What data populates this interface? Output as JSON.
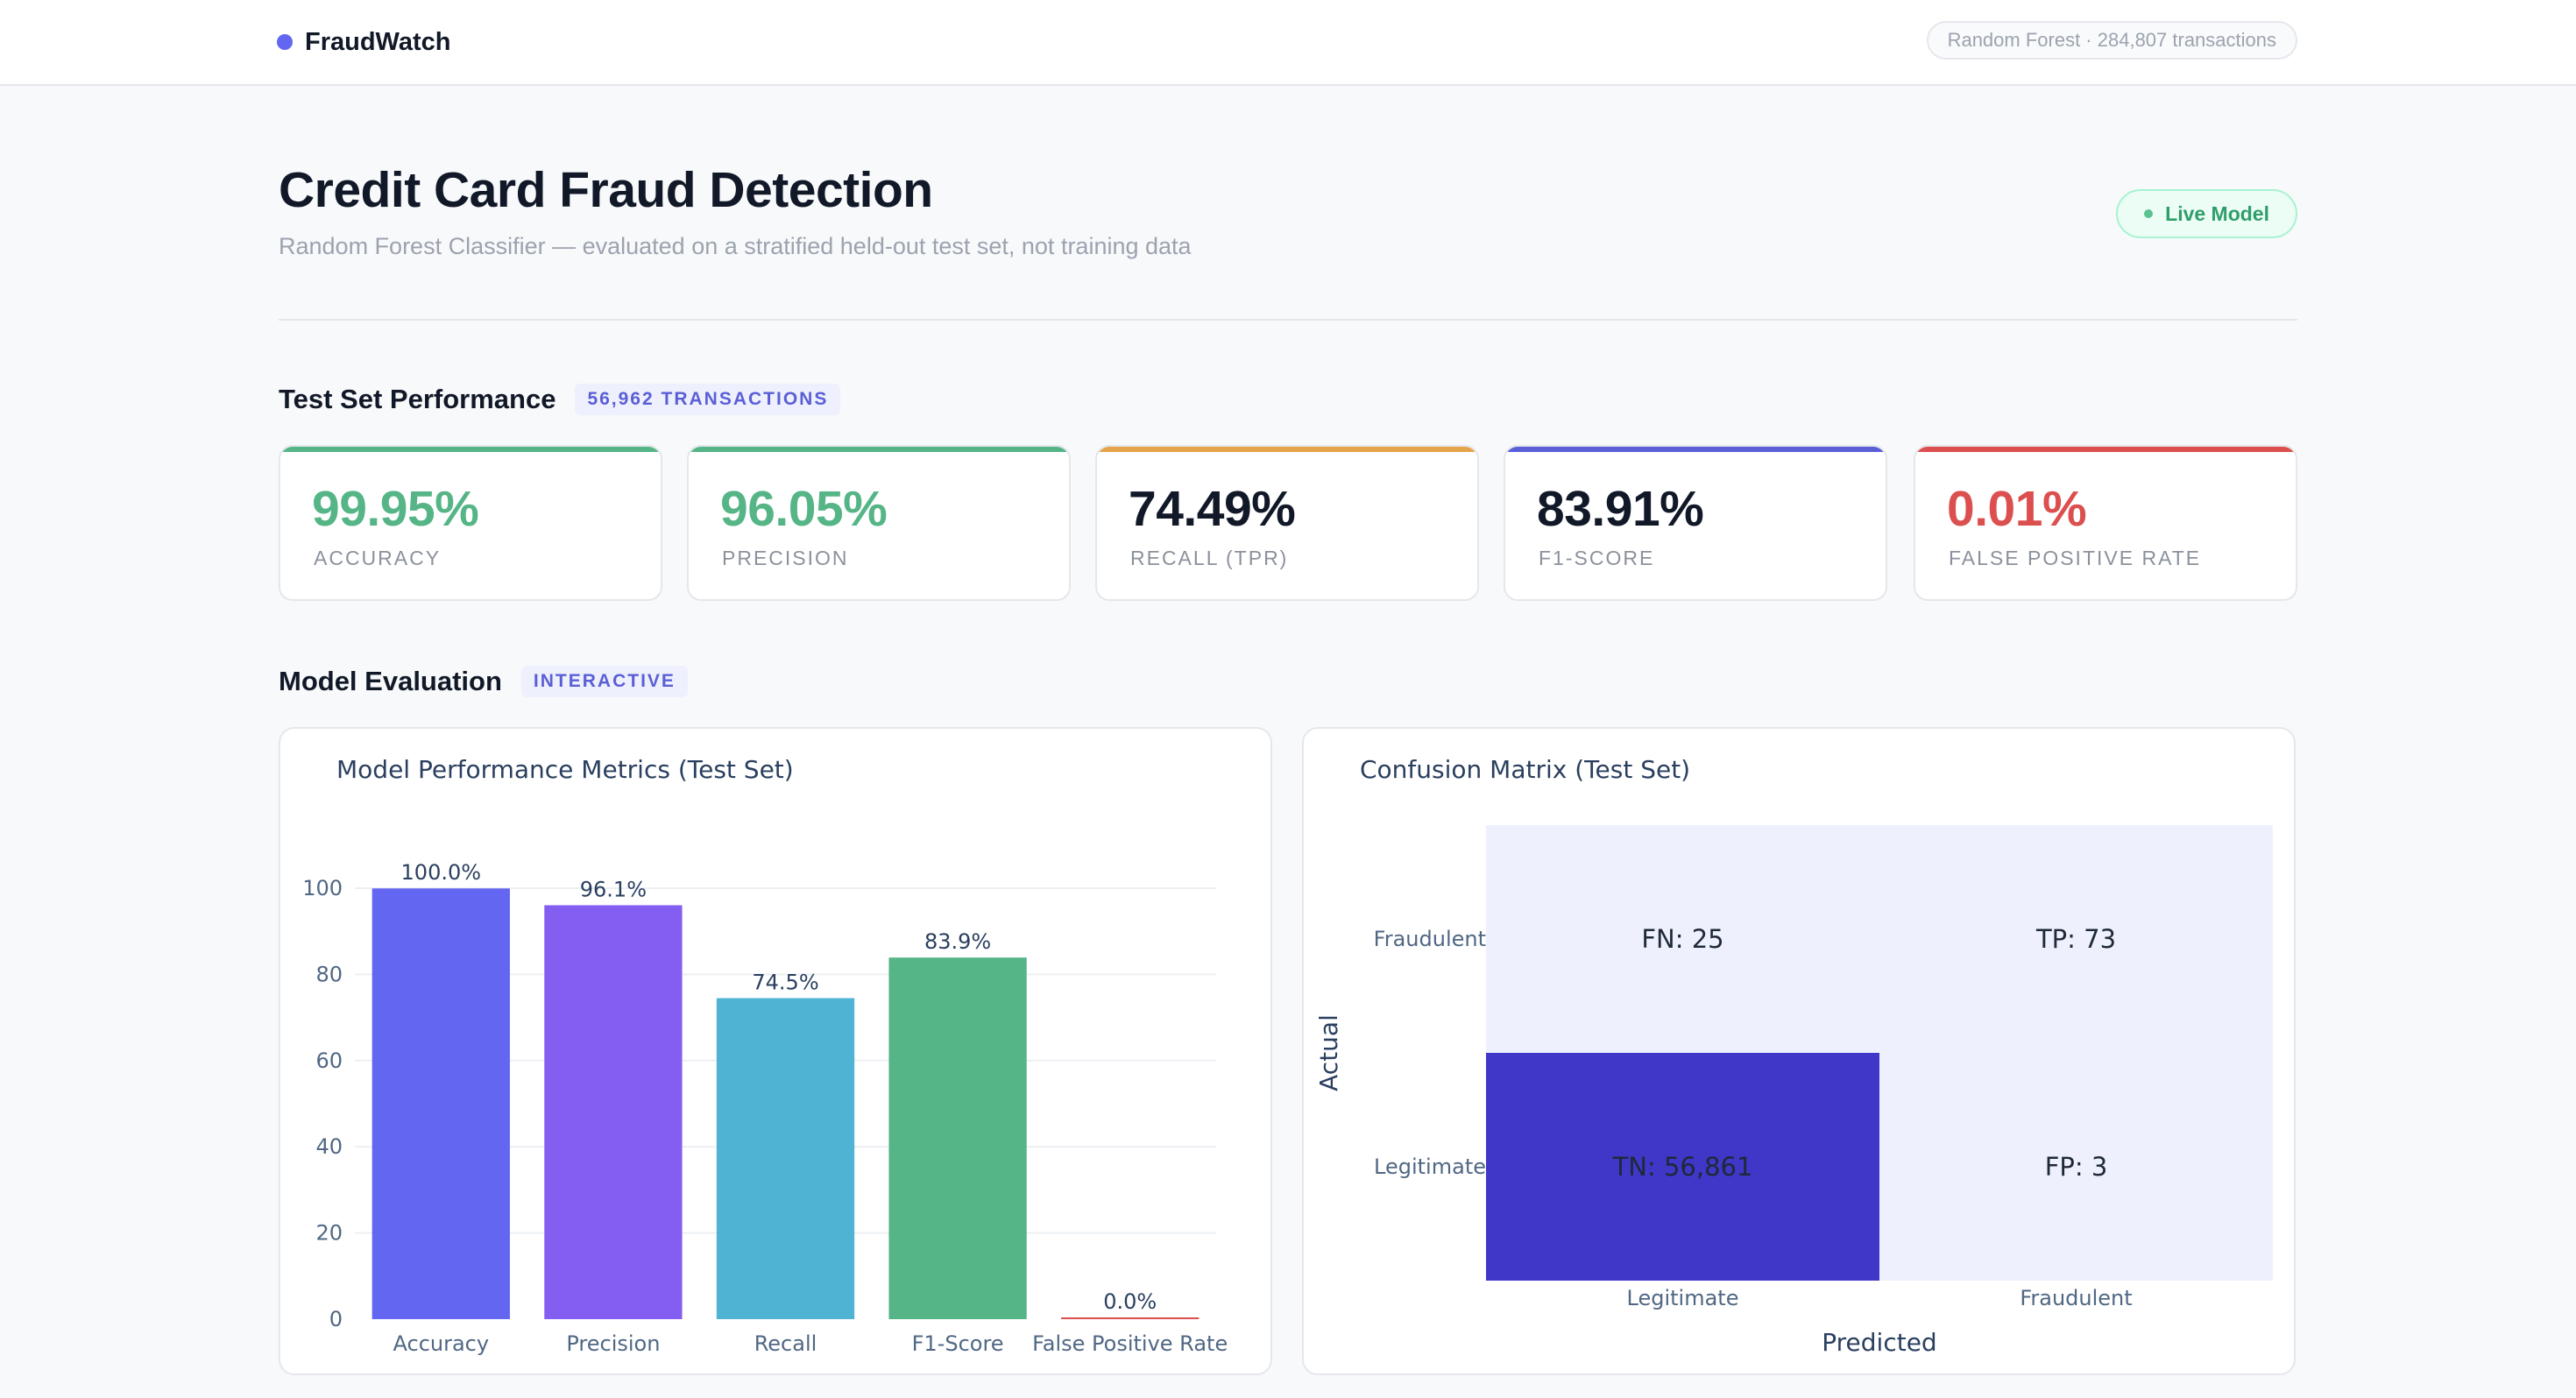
{
  "app": {
    "brand": "FraudWatch",
    "model_summary": "Random Forest · 284,807 transactions"
  },
  "header": {
    "title": "Credit Card Fraud Detection",
    "subtitle": "Random Forest Classifier — evaluated on a stratified held-out test set, not training data",
    "status_badge": "Live Model"
  },
  "performance": {
    "title": "Test Set Performance",
    "tag": "56,962 TRANSACTIONS",
    "metrics": [
      {
        "value": "99.95%",
        "label": "ACCURACY",
        "value_color": "#55b586",
        "accent": "#55b586"
      },
      {
        "value": "96.05%",
        "label": "PRECISION",
        "value_color": "#55b586",
        "accent": "#55b586"
      },
      {
        "value": "74.49%",
        "label": "RECALL (TPR)",
        "value_color": "#111827",
        "accent": "#e5a34a"
      },
      {
        "value": "83.91%",
        "label": "F1-SCORE",
        "value_color": "#111827",
        "accent": "#5b5fd6"
      },
      {
        "value": "0.01%",
        "label": "FALSE POSITIVE RATE",
        "value_color": "#dc4f4f",
        "accent": "#dc4f4f"
      }
    ]
  },
  "evaluation": {
    "title": "Model Evaluation",
    "tag": "INTERACTIVE"
  },
  "chart_data": [
    {
      "type": "bar",
      "title": "Model Performance Metrics (Test Set)",
      "categories": [
        "Accuracy",
        "Precision",
        "Recall",
        "F1-Score",
        "False Positive Rate"
      ],
      "values": [
        99.95,
        96.05,
        74.49,
        83.91,
        0.01
      ],
      "data_labels": [
        "100.0%",
        "96.1%",
        "74.5%",
        "83.9%",
        "0.0%"
      ],
      "colors": [
        "#6366f1",
        "#845ef0",
        "#4fb3d4",
        "#55b586",
        "#dc4f4f"
      ],
      "ylim": [
        0,
        100
      ],
      "yticks": [
        0,
        20,
        40,
        60,
        80,
        100
      ],
      "xlabel": "",
      "ylabel": "",
      "grid": true
    },
    {
      "type": "heatmap",
      "title": "Confusion Matrix (Test Set)",
      "x_categories": [
        "Legitimate",
        "Fraudulent"
      ],
      "y_categories": [
        "Legitimate",
        "Fraudulent"
      ],
      "xlabel": "Predicted",
      "ylabel": "Actual",
      "cells": [
        {
          "actual": "Fraudulent",
          "predicted": "Legitimate",
          "label": "FN: 25",
          "value": 25
        },
        {
          "actual": "Fraudulent",
          "predicted": "Fraudulent",
          "label": "TP: 73",
          "value": 73
        },
        {
          "actual": "Legitimate",
          "predicted": "Legitimate",
          "label": "TN: 56,861",
          "value": 56861
        },
        {
          "actual": "Legitimate",
          "predicted": "Fraudulent",
          "label": "FP: 3",
          "value": 3
        }
      ],
      "color_low": "#eef1fd",
      "color_high": "#4036c7"
    }
  ]
}
